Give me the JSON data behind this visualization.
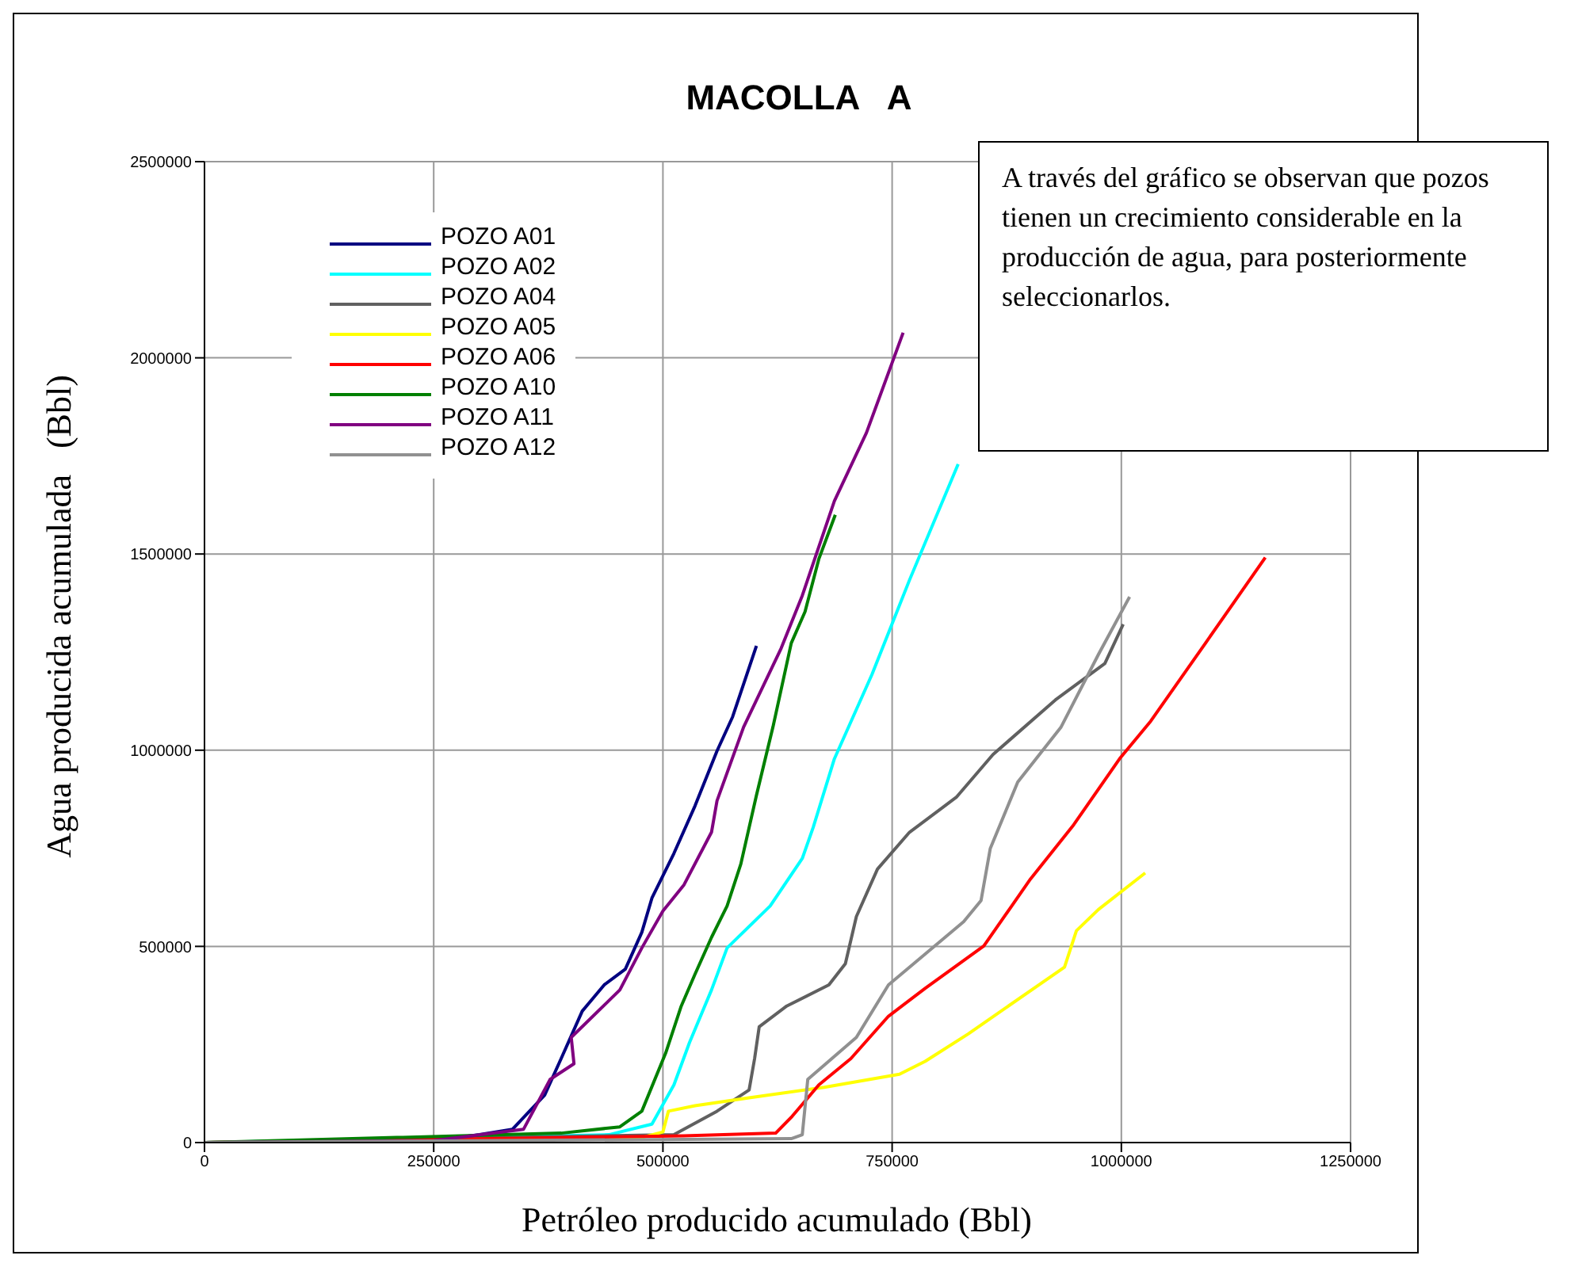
{
  "chart_data": {
    "type": "line",
    "title": "MACOLLA   A",
    "xlabel": "Petróleo producido acumulado (Bbl)",
    "ylabel": "Agua producida acumulada   (Bbl)",
    "annotations": [
      "A través del gráfico se observan que pozos tienen un crecimiento considerable en la producción de agua, para posteriormente seleccionarlos."
    ],
    "xlim": [
      0,
      1250000
    ],
    "xticks": [
      0,
      250000,
      500000,
      750000,
      1000000,
      1250000
    ],
    "ylim": [
      0,
      2500000
    ],
    "yticks": [
      0,
      500000,
      1000000,
      1500000,
      2000000,
      2500000
    ],
    "grid": true,
    "legend": "top left",
    "marker": "none",
    "line_style": "solid",
    "series": [
      {
        "name": "POZO A01",
        "color": "#000080",
        "x": [
          0,
          250000,
          300000,
          336000,
          371000,
          389000,
          412000,
          436000,
          459000,
          477000,
          488000,
          512000,
          535000,
          559000,
          576000,
          602000
        ],
        "values": [
          0,
          5000,
          20000,
          34000,
          121000,
          214000,
          335000,
          402000,
          442000,
          536000,
          623000,
          737000,
          858000,
          998000,
          1085000,
          1266000
        ]
      },
      {
        "name": "POZO A02",
        "color": "#00ffff",
        "x": [
          0,
          441000,
          488000,
          512000,
          529000,
          553000,
          570000,
          617000,
          652000,
          664000,
          687000,
          728000,
          769000,
          822000
        ],
        "values": [
          0,
          20000,
          47000,
          147000,
          255000,
          389000,
          496000,
          603000,
          724000,
          804000,
          978000,
          1193000,
          1434000,
          1729000
        ]
      },
      {
        "name": "POZO A04",
        "color": "#606060",
        "x": [
          0,
          512000,
          559000,
          594000,
          600000,
          605000,
          635000,
          681000,
          699000,
          711000,
          734000,
          769000,
          820000,
          860000,
          928000,
          982000,
          1002000
        ],
        "values": [
          0,
          20000,
          80000,
          134000,
          214000,
          295000,
          348000,
          402000,
          456000,
          576000,
          697000,
          791000,
          880000,
          989000,
          1128000,
          1221000,
          1321000
        ]
      },
      {
        "name": "POZO A05",
        "color": "#ffff00",
        "x": [
          0,
          477000,
          500000,
          506000,
          535000,
          594000,
          676000,
          758000,
          786000,
          833000,
          938000,
          951000,
          975000,
          1026000
        ],
        "values": [
          0,
          13000,
          27000,
          80000,
          94000,
          114000,
          141000,
          174000,
          207000,
          277000,
          447000,
          540000,
          594000,
          687000
        ]
      },
      {
        "name": "POZO A06",
        "color": "#ff0000",
        "x": [
          0,
          523000,
          623000,
          641000,
          670000,
          705000,
          746000,
          786000,
          850000,
          901000,
          948000,
          999000,
          1032000,
          1090000,
          1157000
        ],
        "values": [
          0,
          17000,
          24000,
          67000,
          147000,
          214000,
          322000,
          393000,
          501000,
          672000,
          810000,
          981000,
          1074000,
          1267000,
          1491000
        ]
      },
      {
        "name": "POZO A10",
        "color": "#008000",
        "x": [
          0,
          389000,
          453000,
          477000,
          503000,
          520000,
          535000,
          553000,
          570000,
          585000,
          602000,
          620000,
          640000,
          655000,
          670000,
          688000
        ],
        "values": [
          0,
          24000,
          40000,
          80000,
          228000,
          348000,
          429000,
          523000,
          603000,
          710000,
          885000,
          1059000,
          1273000,
          1353000,
          1487000,
          1600000
        ]
      },
      {
        "name": "POZO A11",
        "color": "#800080",
        "x": [
          0,
          250000,
          348000,
          377000,
          403000,
          400000,
          453000,
          477000,
          500000,
          523000,
          553000,
          559000,
          588000,
          629000,
          652000,
          687000,
          722000,
          762000
        ],
        "values": [
          0,
          5000,
          34000,
          161000,
          201000,
          268000,
          389000,
          496000,
          590000,
          657000,
          791000,
          871000,
          1059000,
          1260000,
          1394000,
          1635000,
          1809000,
          2064000
        ]
      },
      {
        "name": "POZO A12",
        "color": "#909090",
        "x": [
          0,
          640000,
          652000,
          658000,
          711000,
          746000,
          828000,
          847000,
          857000,
          887000,
          934000,
          975000,
          1009000
        ],
        "values": [
          0,
          10000,
          20000,
          161000,
          268000,
          402000,
          563000,
          617000,
          749000,
          919000,
          1058000,
          1244000,
          1391000
        ]
      }
    ]
  }
}
